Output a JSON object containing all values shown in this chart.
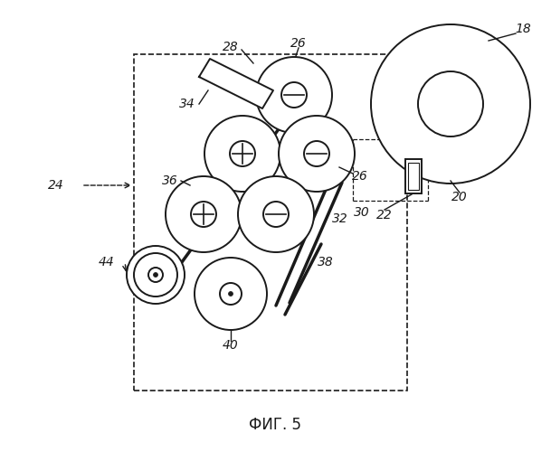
{
  "bg_color": "#ffffff",
  "line_color": "#1a1a1a",
  "title": "ФИГ. 5",
  "title_fontsize": 12,
  "fig_width": 6.09,
  "fig_height": 5.0,
  "dpi": 100
}
